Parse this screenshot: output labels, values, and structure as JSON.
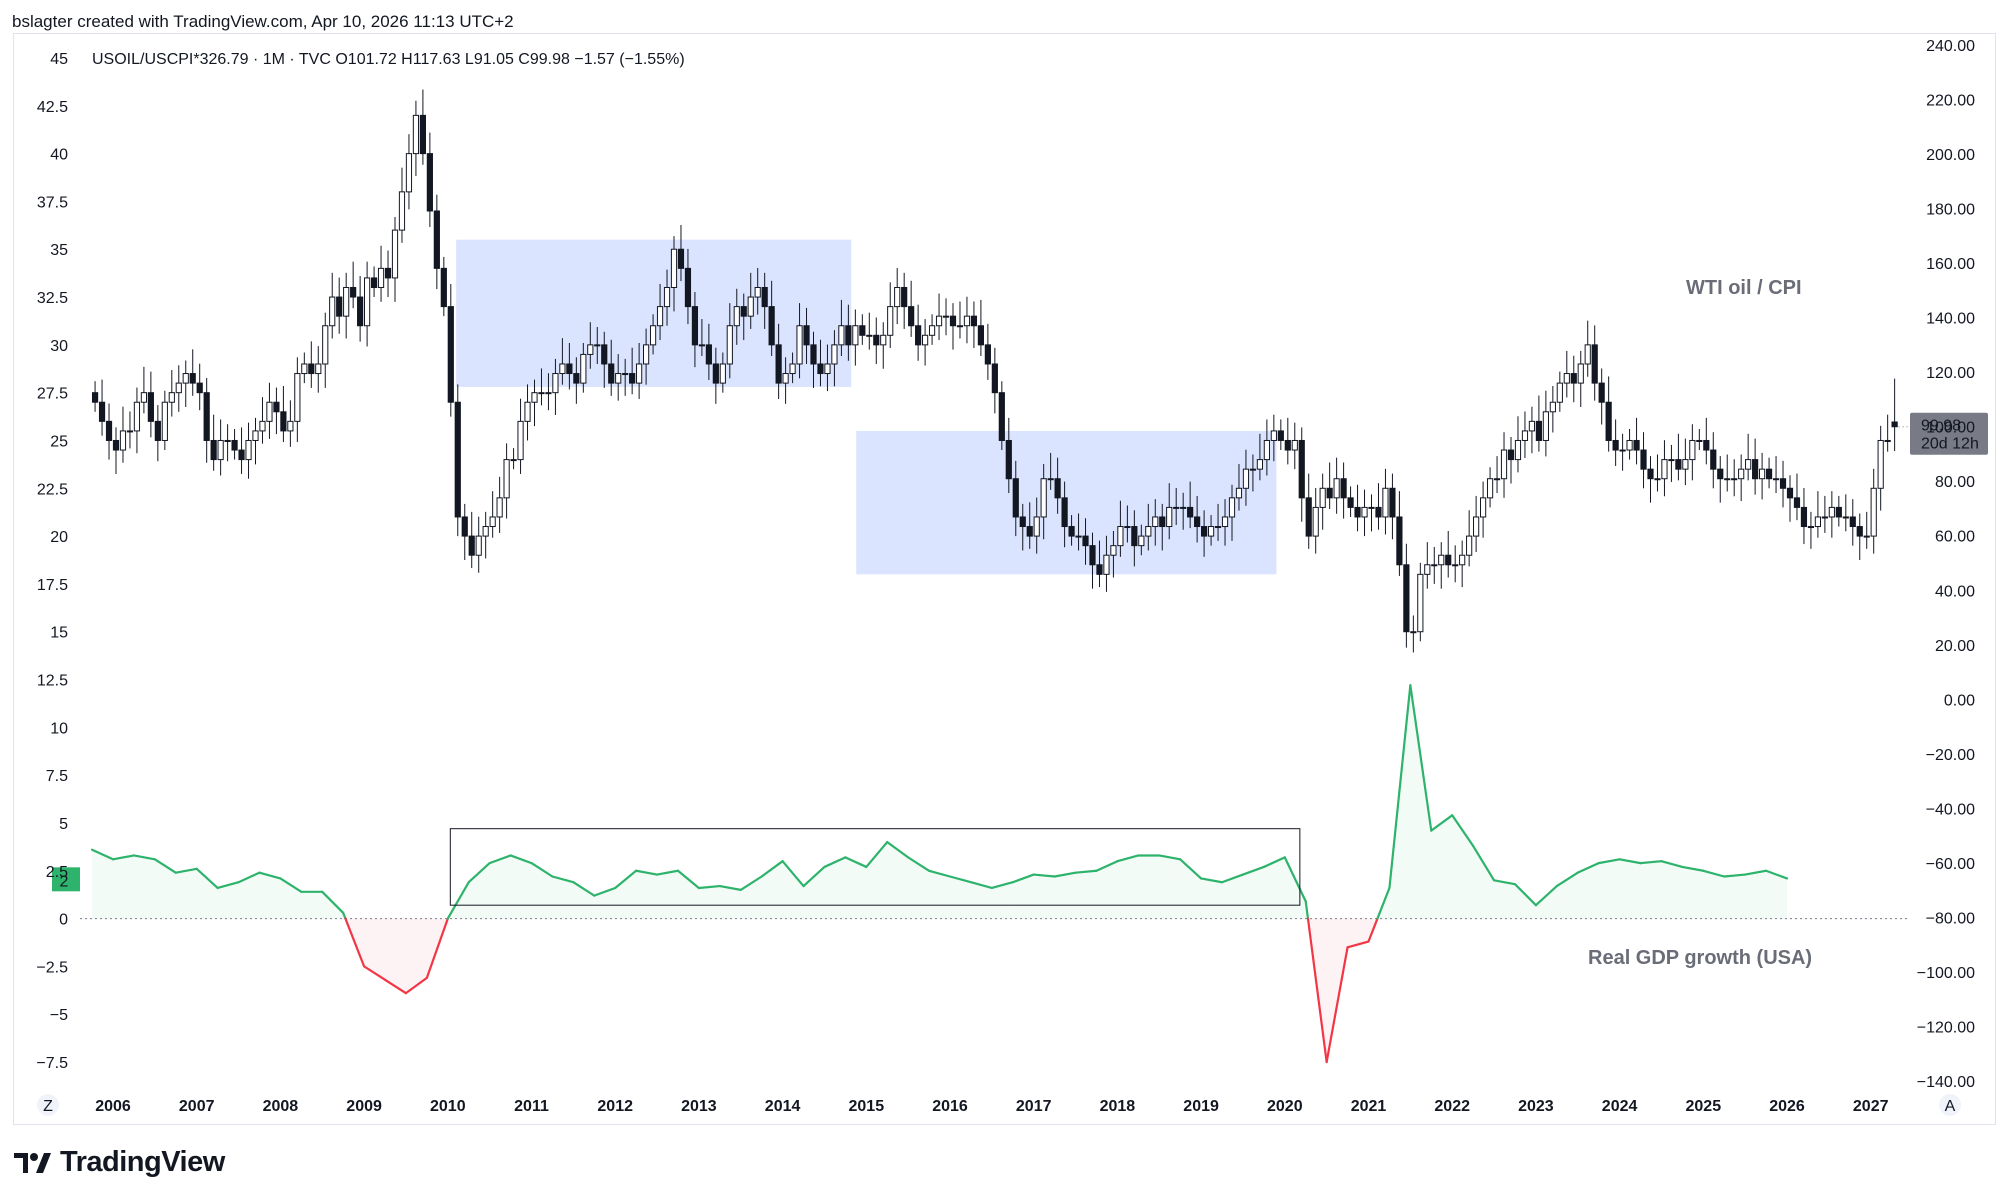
{
  "header": {
    "attribution": "bslagter created with TradingView.com, Apr 10, 2026 11:13 UTC+2"
  },
  "footer": {
    "brand": "TradingView"
  },
  "colors": {
    "box_fill": "#dbe4fe",
    "gdp_positive": "#2db36b",
    "gdp_negative": "#f23645",
    "candle": "#131722",
    "price_tag": "#787b86"
  },
  "chart_data": {
    "type": "candlestick",
    "legend": "USOIL/USCPI*326.79 · 1M · TVC  O101.72  H117.63  L91.05  C99.98  −1.57 (−1.55%)",
    "annotations": [
      "WTI oil / CPI",
      "Real GDP growth (USA)"
    ],
    "price_label": {
      "value": "99.98",
      "countdown": "20d 12h"
    },
    "gdp_label": "2",
    "left_axis_ticks": [
      "45",
      "42.5",
      "40",
      "37.5",
      "35",
      "32.5",
      "30",
      "27.5",
      "25",
      "22.5",
      "20",
      "17.5",
      "15",
      "12.5",
      "10",
      "7.5",
      "5",
      "2.5",
      "0",
      "−2.5",
      "−5",
      "−7.5"
    ],
    "right_axis_ticks": [
      "240.00",
      "220.00",
      "200.00",
      "180.00",
      "160.00",
      "140.00",
      "120.00",
      "100.00",
      "80.00",
      "60.00",
      "40.00",
      "20.00",
      "0.00",
      "−20.00",
      "−40.00",
      "−60.00",
      "−80.00",
      "−100.00",
      "−120.00",
      "−140.00"
    ],
    "x_ticks": [
      "2006",
      "2007",
      "2008",
      "2009",
      "2010",
      "2011",
      "2012",
      "2013",
      "2014",
      "2015",
      "2016",
      "2017",
      "2018",
      "2019",
      "2020",
      "2021",
      "2022",
      "2023",
      "2024",
      "2025",
      "2026",
      "2027"
    ],
    "axis_corner_left": "Z",
    "axis_corner_right": "A",
    "price_series": {
      "name": "USOIL/USCPI*326.79",
      "monthly_start": "2005-10",
      "close": [
        27,
        26,
        25,
        24.5,
        25.5,
        25.5,
        27,
        27.5,
        26,
        25,
        27,
        27.5,
        28,
        28.5,
        28,
        27.5,
        25,
        24,
        25,
        25,
        24.5,
        24,
        25,
        25.5,
        26,
        27,
        26.5,
        25.5,
        26,
        28.5,
        29,
        28.5,
        29,
        31,
        32.5,
        31.5,
        33,
        32.5,
        31,
        33.5,
        33,
        34,
        33.5,
        36,
        38,
        40,
        42,
        40,
        37,
        34,
        32,
        27,
        21,
        20,
        19,
        20,
        20.5,
        21,
        22,
        24,
        24,
        26,
        27,
        27.5,
        27.5,
        27.5,
        28.5,
        29,
        28.5,
        28,
        29.5,
        30,
        30,
        29,
        28,
        28.5,
        28.5,
        28,
        29,
        30,
        31,
        32,
        33,
        35,
        34,
        32,
        30,
        30,
        29,
        28,
        29,
        31,
        32,
        31.5,
        32.5,
        33,
        32,
        30,
        28,
        28.5,
        29,
        31,
        30,
        29,
        28.5,
        29,
        30,
        31,
        30,
        31,
        30.5,
        30.5,
        30,
        30.5,
        32,
        33,
        32,
        31,
        30,
        30.5,
        31,
        31.5,
        31.5,
        31,
        31,
        31.5,
        31,
        30,
        29,
        27.5,
        25,
        23,
        21,
        20.5,
        20,
        21,
        23,
        23,
        22,
        20.5,
        20,
        20,
        19.5,
        18.5,
        18,
        19,
        19.5,
        20.5,
        20.5,
        19.5,
        20,
        20.5,
        21,
        20.5,
        21.5,
        21.5,
        21.5,
        21,
        20.5,
        20,
        20.5,
        20.5,
        21,
        22,
        22.5,
        23.5,
        23.5,
        24,
        25,
        25.5,
        25,
        24.5,
        25,
        22,
        20,
        21.5,
        22.5,
        22,
        23,
        22,
        21.5,
        21,
        21.5,
        21.5,
        21,
        22.5,
        21,
        18.5,
        15,
        15,
        18,
        18.5,
        18.5,
        19,
        18.5,
        18.5,
        19,
        20,
        21,
        22,
        23,
        23,
        24.5,
        24,
        25,
        25.5,
        26,
        25,
        26.5,
        27,
        28,
        28.5,
        28,
        29,
        30,
        28,
        27,
        25,
        24.5,
        24.5,
        25,
        24.5,
        23.5,
        23,
        23,
        24,
        24,
        23.5,
        24,
        25,
        25,
        24.5,
        23.5,
        23,
        23,
        23,
        23.5,
        24,
        23,
        23.5,
        23,
        23,
        22.5,
        22,
        21.5,
        20.5,
        20.5,
        21,
        21,
        21.5,
        21,
        21,
        20.5,
        20,
        20,
        22.5,
        25,
        25
      ],
      "last_candle": {
        "open": 101.72,
        "high": 117.63,
        "low": 91.05,
        "close": 99.98
      }
    },
    "gdp_series": {
      "name": "Real GDP growth (USA)",
      "quarterly_start": "2005-Q4",
      "values": [
        3.6,
        3.1,
        3.3,
        3.1,
        2.4,
        2.6,
        1.6,
        1.9,
        2.4,
        2.1,
        1.4,
        1.4,
        0.3,
        -2.5,
        -3.2,
        -3.9,
        -3.1,
        0,
        1.9,
        2.9,
        3.3,
        2.9,
        2.2,
        1.9,
        1.2,
        1.6,
        2.5,
        2.3,
        2.5,
        1.6,
        1.7,
        1.5,
        2.2,
        3.0,
        1.7,
        2.7,
        3.2,
        2.7,
        4.0,
        3.2,
        2.5,
        2.2,
        1.9,
        1.6,
        1.9,
        2.3,
        2.2,
        2.4,
        2.5,
        3.0,
        3.3,
        3.3,
        3.1,
        2.1,
        1.9,
        2.3,
        2.7,
        3.2,
        0.9,
        -7.5,
        -1.5,
        -1.2,
        1.6,
        12.2,
        4.6,
        5.4,
        3.8,
        2.0,
        1.8,
        0.7,
        1.7,
        2.4,
        2.9,
        3.1,
        2.9,
        3.0,
        2.7,
        2.5,
        2.2,
        2.3,
        2.5,
        2.1
      ],
      "positive_color": "#2db36b",
      "negative_color": "#f23645"
    }
  }
}
